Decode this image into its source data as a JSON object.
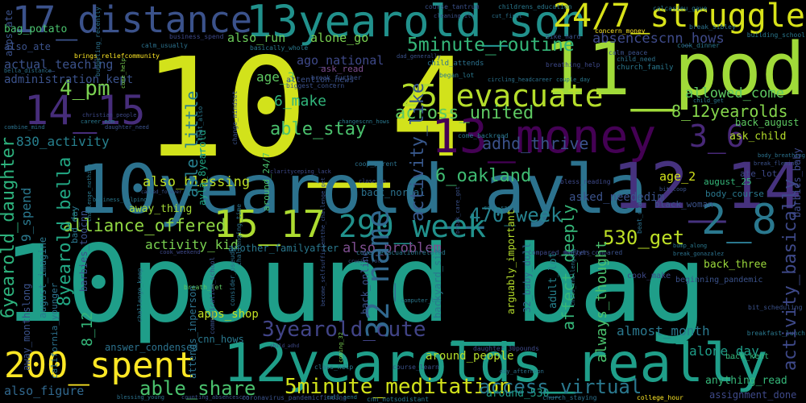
{
  "background": "#000000",
  "words": [
    {
      "text": "10pound_bag",
      "color": "#1f9e89"
    },
    {
      "text": "10_4",
      "color": "#d2e21b"
    },
    {
      "text": "10yearold_ayla",
      "color": "#2c728e"
    },
    {
      "text": "11_pod",
      "color": "#a0da39"
    },
    {
      "text": "12yearolds_really",
      "color": "#1f9e89"
    },
    {
      "text": "13yearold_son",
      "color": "#21918c"
    },
    {
      "text": "12_14",
      "color": "#46327e"
    },
    {
      "text": "13_money",
      "color": "#440154"
    },
    {
      "text": "17_distance",
      "color": "#3b528b"
    },
    {
      "text": "24/7_struggle",
      "color": "#d8e219"
    },
    {
      "text": "14_15",
      "color": "#472d7b"
    },
    {
      "text": "25_evacuate",
      "color": "#b5de2b"
    },
    {
      "text": "200_spent",
      "color": "#fde725"
    },
    {
      "text": "15_17",
      "color": "#addc30"
    },
    {
      "text": "290_week",
      "color": "#21918c"
    },
    {
      "text": "2_8",
      "color": "#2a788e"
    },
    {
      "text": "32_name",
      "color": "#31688e"
    },
    {
      "text": "3yearold_cute",
      "color": "#414487"
    },
    {
      "text": "5minute_meditation",
      "color": "#d2e21b"
    },
    {
      "text": "5minute_routine",
      "color": "#35b779"
    },
    {
      "text": "3_6",
      "color": "#482878"
    },
    {
      "text": "470_week",
      "color": "#26828e"
    },
    {
      "text": "530_get",
      "color": "#bddf26"
    },
    {
      "text": "8yearold_bella",
      "color": "#22a884"
    },
    {
      "text": "6yearold_daughter",
      "color": "#2db27d"
    },
    {
      "text": "able_share",
      "color": "#4ac16d"
    },
    {
      "text": "4_pm",
      "color": "#7ad151"
    },
    {
      "text": "access_virtual",
      "color": "#2a788e"
    },
    {
      "text": "able_little",
      "color": "#277f8e"
    },
    {
      "text": "activity_basically",
      "color": "#3e4989"
    },
    {
      "text": "activity_like",
      "color": "#38588c"
    },
    {
      "text": "affect_deeply",
      "color": "#35b779"
    },
    {
      "text": "6_oakland",
      "color": "#3fbc73"
    },
    {
      "text": "across_united",
      "color": "#5ec962"
    },
    {
      "text": "able_stay",
      "color": "#4ac16d"
    },
    {
      "text": "8_12yearolds",
      "color": "#84d44b"
    },
    {
      "text": "adhd_thrive",
      "color": "#3b528b"
    },
    {
      "text": "also_blessing",
      "color": "#bddf26"
    },
    {
      "text": "alliance_offered",
      "color": "#90d743"
    },
    {
      "text": "also_problem",
      "color": "#7e4e90"
    },
    {
      "text": "activity_kid",
      "color": "#7ad151"
    },
    {
      "text": "always_thought",
      "color": "#4ac16d"
    },
    {
      "text": "absencescnn_hows",
      "color": "#3e4a89"
    },
    {
      "text": "actual_teaching",
      "color": "#3b528b"
    },
    {
      "text": "allowed_come",
      "color": "#5ec962"
    },
    {
      "text": "830_activity",
      "color": "#27808e"
    },
    {
      "text": "6_make",
      "color": "#31b57b"
    },
    {
      "text": "age_3",
      "color": "#5ec962"
    },
    {
      "text": "also_run",
      "color": "#6ccd5a"
    },
    {
      "text": "alone_go",
      "color": "#7ad151"
    },
    {
      "text": "ago_national",
      "color": "#3e4989"
    },
    {
      "text": "administration_kept",
      "color": "#3b528b"
    },
    {
      "text": "alone_day",
      "color": "#1f9e89"
    },
    {
      "text": "almost_month",
      "color": "#2a788e"
    },
    {
      "text": "around_people",
      "color": "#b5de2b"
    },
    {
      "text": "also_figure",
      "color": "#31688e"
    },
    {
      "text": "answer_condensed",
      "color": "#2c728e"
    },
    {
      "text": "apps_shop",
      "color": "#c2df23"
    },
    {
      "text": "adult_lot",
      "color": "#26828e"
    },
    {
      "text": "back_three",
      "color": "#9bd93c"
    },
    {
      "text": "asked_neededim",
      "color": "#3b528b"
    },
    {
      "text": "age_2",
      "color": "#d2e21b"
    },
    {
      "text": "ayla_8yearold",
      "color": "#21a685"
    },
    {
      "text": "9_spend",
      "color": "#2a788e"
    },
    {
      "text": "8_12",
      "color": "#35b779"
    },
    {
      "text": "away_thing",
      "color": "#a5db36"
    },
    {
      "text": "ask_child",
      "color": "#b5de2b"
    },
    {
      "text": "back_august",
      "color": "#5ec962"
    },
    {
      "text": "august_imagine",
      "color": "#2a788e"
    },
    {
      "text": "also_ate",
      "color": "#3b528b"
    },
    {
      "text": "anything_read",
      "color": "#35b779"
    },
    {
      "text": "assignment_done",
      "color": "#3e4989"
    },
    {
      "text": "another_familyafter",
      "color": "#2a788e"
    },
    {
      "text": "around_530",
      "color": "#1f9e89"
    },
    {
      "text": "apps_ate",
      "color": "#3b528b"
    },
    {
      "text": "bag_potato",
      "color": "#4ac16d"
    },
    {
      "text": "barbies_baby",
      "color": "#3e4989"
    },
    {
      "text": "arguably_important",
      "color": "#b5de2b"
    },
    {
      "text": "32_baby_doll",
      "color": "#31688e"
    },
    {
      "text": "backyard_six",
      "color": "#2a788e"
    },
    {
      "text": "back_online",
      "color": "#3b528b"
    },
    {
      "text": "attends_inperson",
      "color": "#2c728e"
    },
    {
      "text": "barbies_toocnn",
      "color": "#3b528b"
    },
    {
      "text": "around_24/7",
      "color": "#4ac16d"
    },
    {
      "text": "ate_lot",
      "color": "#3e4989"
    },
    {
      "text": "august_25",
      "color": "#35b779"
    },
    {
      "text": "body_course",
      "color": "#2a788e"
    },
    {
      "text": "black_woman",
      "color": "#3b528b"
    },
    {
      "text": "back_normal",
      "color": "#2c728e"
    },
    {
      "text": "bad_day",
      "color": "#2a788e"
    },
    {
      "text": "attention_news",
      "color": "#3b528b"
    },
    {
      "text": "ask_read",
      "color": "#7e4e90"
    },
    {
      "text": "away_monthslong",
      "color": "#3b528b"
    },
    {
      "text": "california_younger",
      "color": "#2c728e"
    },
    {
      "text": "coming_32",
      "color": "#7ad151"
    },
    {
      "text": "breath_let",
      "color": "#5ec962"
    },
    {
      "text": "cnn_hows",
      "color": "#2a788e"
    },
    {
      "text": "computer_lab",
      "color": "#2a788e"
    },
    {
      "text": "coronavirus_pandemicfinding",
      "color": "#3b528b"
    },
    {
      "text": "cnn_notsodistant",
      "color": "#2a788e"
    },
    {
      "text": "church_staying",
      "color": "#2c728e"
    },
    {
      "text": "college_hour",
      "color": "#fde725"
    },
    {
      "text": "come_help",
      "color": "#7ad151"
    },
    {
      "text": "bit_scheduling",
      "color": "#3b528b"
    },
    {
      "text": "breakfast_lunch",
      "color": "#2a788e"
    },
    {
      "text": "back_kent",
      "color": "#35b779"
    },
    {
      "text": "cook_make",
      "color": "#3e4989"
    },
    {
      "text": "beginning_pandemic",
      "color": "#3b528b"
    },
    {
      "text": "christian_people",
      "color": "#3e4989"
    },
    {
      "text": "childrens_education",
      "color": "#2a788e"
    },
    {
      "text": "course_tantrum",
      "color": "#3b528b"
    },
    {
      "text": "cut_first",
      "color": "#2c728e"
    },
    {
      "text": "calcasieu_gave",
      "color": "#2a788e"
    },
    {
      "text": "cleaning_ill",
      "color": "#3b528b"
    },
    {
      "text": "business_spend",
      "color": "#3e4989"
    },
    {
      "text": "calm_usually",
      "color": "#2c728e"
    },
    {
      "text": "brings_reliefcommunity",
      "color": "#fde725"
    },
    {
      "text": "basically_whole",
      "color": "#2a788e"
    },
    {
      "text": "biggest_concern",
      "color": "#3b528b"
    },
    {
      "text": "child_attends",
      "color": "#2c728e"
    },
    {
      "text": "breathing_help",
      "color": "#3e4989"
    },
    {
      "text": "began_lot",
      "color": "#2a788e"
    },
    {
      "text": "bike_hard",
      "color": "#3b528b"
    },
    {
      "text": "concern_money",
      "color": "#fde725"
    },
    {
      "text": "break_sibley",
      "color": "#2c728e"
    },
    {
      "text": "cook_dinner",
      "color": "#2a788e"
    },
    {
      "text": "calm_peace",
      "color": "#3b528b"
    },
    {
      "text": "child_need",
      "color": "#2c728e"
    },
    {
      "text": "church_family",
      "color": "#2a788e"
    },
    {
      "text": "child_get",
      "color": "#2a788e"
    },
    {
      "text": "break_fleming",
      "color": "#3b528b"
    },
    {
      "text": "body_breathing",
      "color": "#2c728e"
    },
    {
      "text": "come_backread",
      "color": "#2a788e"
    },
    {
      "text": "coop_parent",
      "color": "#2c728e"
    },
    {
      "text": "bit_coop",
      "color": "#3b528b"
    },
    {
      "text": "calm_sane",
      "color": "#2a788e"
    },
    {
      "text": "compared_manyyts",
      "color": "#3e4989"
    },
    {
      "text": "better_compared",
      "color": "#3b528b"
    },
    {
      "text": "break_gonazalez",
      "color": "#2c728e"
    },
    {
      "text": "bump_along",
      "color": "#2a788e"
    },
    {
      "text": "become_selfsufficientthe_challenge_get",
      "color": "#3b528b"
    },
    {
      "text": "class_help",
      "color": "#2a788e"
    },
    {
      "text": "course_learn",
      "color": "#3b528b"
    },
    {
      "text": "daughter_30pounds",
      "color": "#3e4989"
    },
    {
      "text": "day_afternoon",
      "color": "#2c728e"
    },
    {
      "text": "call_send",
      "color": "#2a788e"
    },
    {
      "text": "blessing_young",
      "color": "#2c728e"
    },
    {
      "text": "counting_absencescnn",
      "color": "#3b528b"
    },
    {
      "text": "cook_weekend",
      "color": "#3e4989"
    },
    {
      "text": "cover_evacuationrelated",
      "color": "#2a788e"
    },
    {
      "text": "crucial_role",
      "color": "#3b528b"
    },
    {
      "text": "child_adhd",
      "color": "#3e4989"
    },
    {
      "text": "couple_day",
      "color": "#2a788e"
    },
    {
      "text": "circling_headcareer",
      "color": "#2c728e"
    },
    {
      "text": "break_further",
      "color": "#3b528b"
    },
    {
      "text": "career_mom",
      "color": "#2a788e"
    },
    {
      "text": "daughter_need",
      "color": "#3b528b"
    },
    {
      "text": "combine_mind",
      "color": "#2c728e"
    },
    {
      "text": "clarityceping_lack",
      "color": "#3e4989"
    },
    {
      "text": "changescnn_hows",
      "color": "#2a788e"
    },
    {
      "text": "close_go",
      "color": "#3b528b"
    },
    {
      "text": "bella_distance",
      "color": "#2c728e"
    },
    {
      "text": "building_school",
      "color": "#2a788e"
    },
    {
      "text": "dad_generally",
      "color": "#3b528b"
    },
    {
      "text": "bless_reading",
      "color": "#3e4989"
    },
    {
      "text": "business_helping",
      "color": "#2a788e"
    },
    {
      "text": "called_forever",
      "color": "#3b528b"
    },
    {
      "text": "budgeting_recently",
      "color": "#2c728e"
    },
    {
      "text": "chat_also",
      "color": "#2a788e"
    },
    {
      "text": "change_mindset",
      "color": "#3b528b"
    },
    {
      "text": "challenging_time",
      "color": "#2c728e"
    },
    {
      "text": "challenge_keep",
      "color": "#2a788e"
    },
    {
      "text": "communication_school",
      "color": "#3b528b"
    },
    {
      "text": "consider_pseudo",
      "color": "#2c728e"
    },
    {
      "text": "challenge_nothing",
      "color": "#2a788e"
    },
    {
      "text": "break_care_got",
      "color": "#3b528b"
    },
    {
      "text": "beat_deal",
      "color": "#2c728e"
    },
    {
      "text": "child_challenging",
      "color": "#2a788e"
    }
  ]
}
